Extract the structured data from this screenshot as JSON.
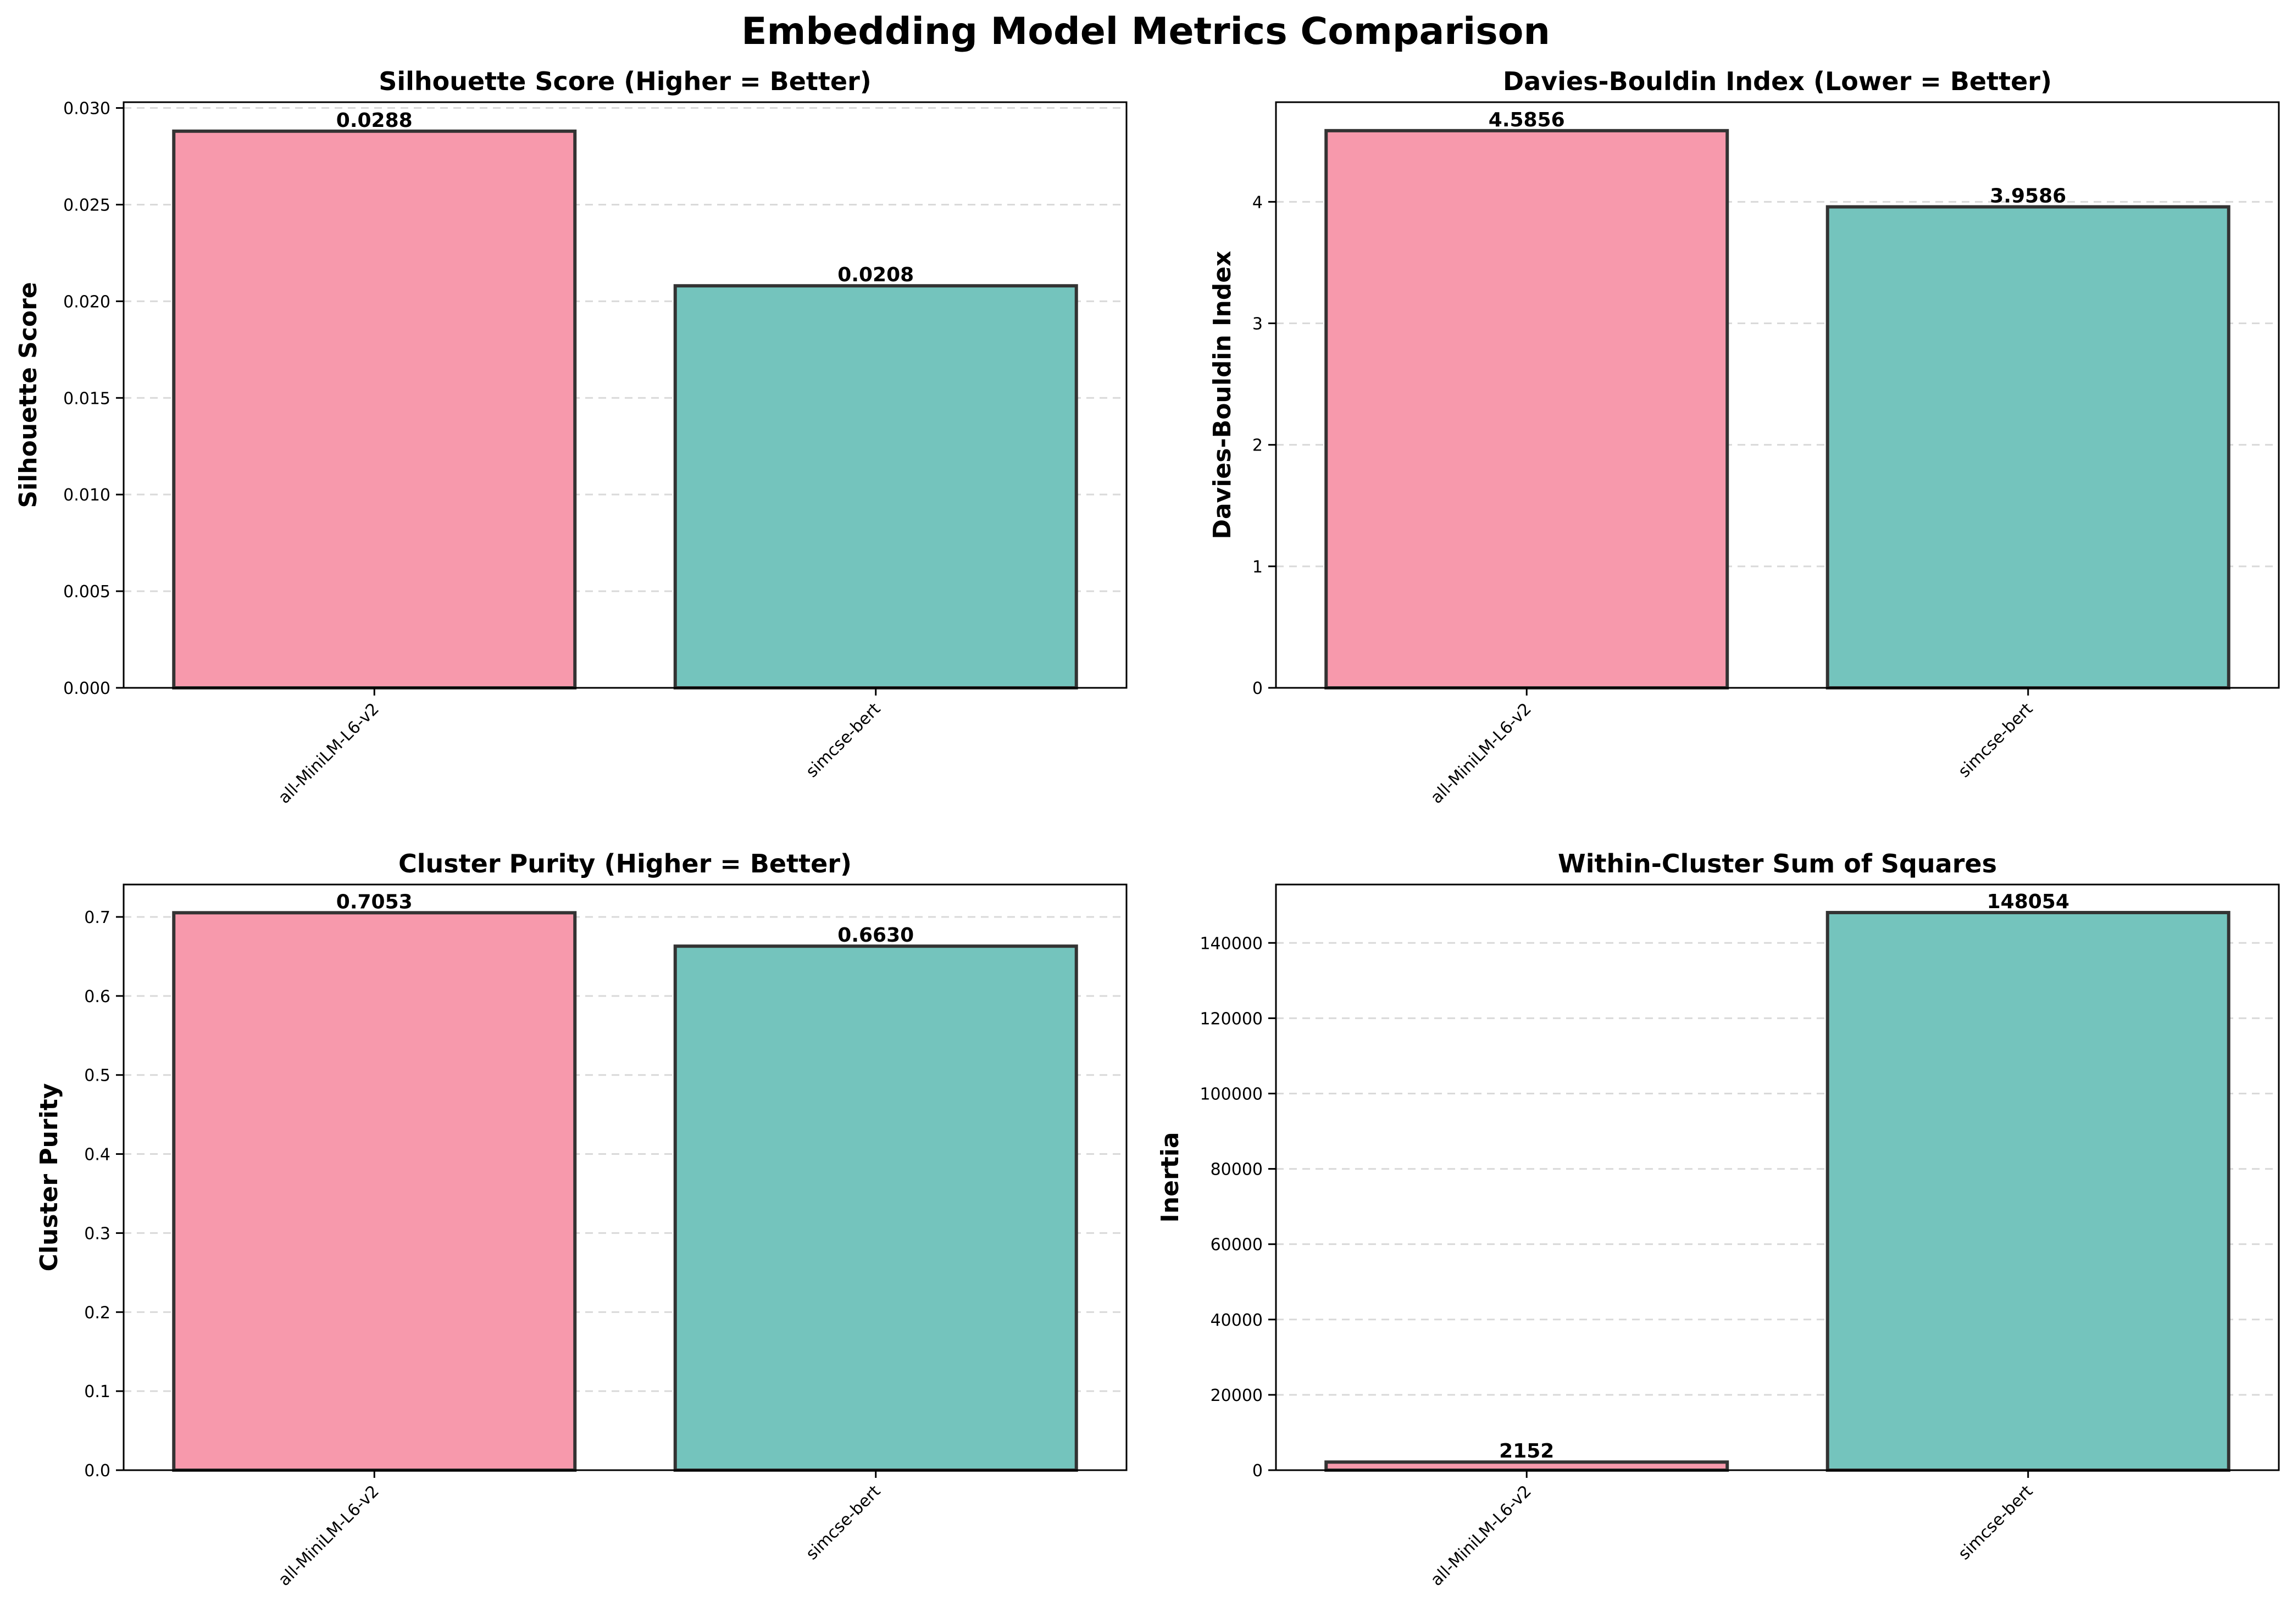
{
  "figure": {
    "title": "Embedding Model Metrics Comparison"
  },
  "colors": {
    "bar1": "#f799ac",
    "bar2": "#74c4bd",
    "edge": "#333333",
    "grid": "#d9d9d9",
    "text": "#000000"
  },
  "chart_data": [
    {
      "type": "bar",
      "title": "Silhouette Score (Higher = Better)",
      "xlabel": "",
      "ylabel": "Silhouette Score",
      "categories": [
        "all-MiniLM-L6-v2",
        "simcse-bert"
      ],
      "values": [
        0.0288,
        0.0208
      ],
      "value_labels": [
        "0.0288",
        "0.0208"
      ],
      "ylim": [
        0,
        0.0303
      ],
      "yticks": [
        0,
        0.005,
        0.01,
        0.015,
        0.02,
        0.025,
        0.03
      ],
      "ytick_labels": [
        "0.000",
        "0.005",
        "0.010",
        "0.015",
        "0.020",
        "0.025",
        "0.030"
      ],
      "grid": "y-dashed",
      "legend": "none"
    },
    {
      "type": "bar",
      "title": "Davies-Bouldin Index (Lower = Better)",
      "xlabel": "",
      "ylabel": "Davies-Bouldin Index",
      "categories": [
        "all-MiniLM-L6-v2",
        "simcse-bert"
      ],
      "values": [
        4.5856,
        3.9586
      ],
      "value_labels": [
        "4.5856",
        "3.9586"
      ],
      "ylim": [
        0,
        4.82
      ],
      "yticks": [
        0,
        1,
        2,
        3,
        4
      ],
      "ytick_labels": [
        "0",
        "1",
        "2",
        "3",
        "4"
      ],
      "grid": "y-dashed",
      "legend": "none"
    },
    {
      "type": "bar",
      "title": "Cluster Purity (Higher = Better)",
      "xlabel": "",
      "ylabel": "Cluster Purity",
      "categories": [
        "all-MiniLM-L6-v2",
        "simcse-bert"
      ],
      "values": [
        0.7053,
        0.663
      ],
      "value_labels": [
        "0.7053",
        "0.6630"
      ],
      "ylim": [
        0,
        0.741
      ],
      "yticks": [
        0,
        0.1,
        0.2,
        0.3,
        0.4,
        0.5,
        0.6,
        0.7
      ],
      "ytick_labels": [
        "0.0",
        "0.1",
        "0.2",
        "0.3",
        "0.4",
        "0.5",
        "0.6",
        "0.7"
      ],
      "grid": "y-dashed",
      "legend": "none"
    },
    {
      "type": "bar",
      "title": "Within-Cluster Sum of Squares",
      "xlabel": "",
      "ylabel": "Inertia",
      "categories": [
        "all-MiniLM-L6-v2",
        "simcse-bert"
      ],
      "values": [
        2152,
        148054
      ],
      "value_labels": [
        "2152",
        "148054"
      ],
      "ylim": [
        0,
        155500
      ],
      "yticks": [
        0,
        20000,
        40000,
        60000,
        80000,
        100000,
        120000,
        140000
      ],
      "ytick_labels": [
        "0",
        "20000",
        "40000",
        "60000",
        "80000",
        "100000",
        "120000",
        "140000"
      ],
      "grid": "y-dashed",
      "legend": "none"
    }
  ]
}
